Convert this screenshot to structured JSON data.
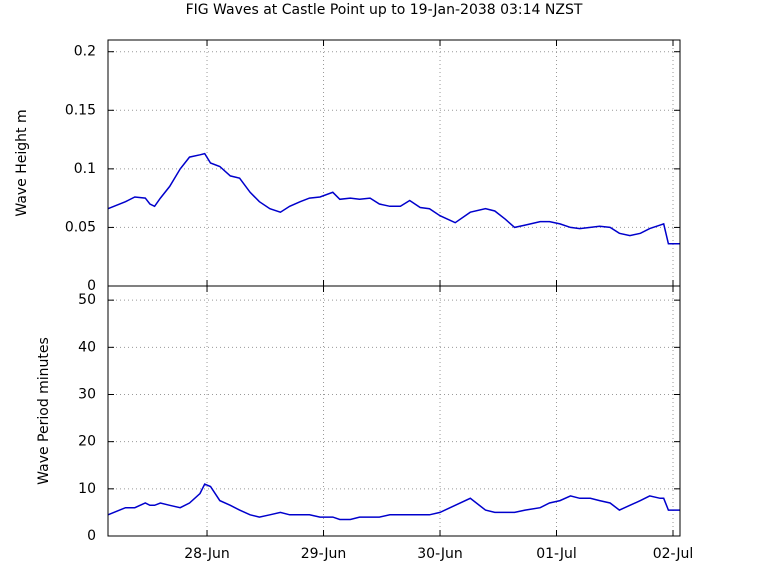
{
  "chart_data": [
    {
      "type": "line",
      "title": "FIG Waves at Castle Point up to 19-Jan-2038 03:14 NZST",
      "ylabel": "Wave Height m",
      "x": [
        0.15,
        0.3,
        0.38,
        0.47,
        0.51,
        0.55,
        0.6,
        0.68,
        0.77,
        0.85,
        0.94,
        0.98,
        1.03,
        1.11,
        1.2,
        1.28,
        1.37,
        1.45,
        1.54,
        1.63,
        1.71,
        1.8,
        1.88,
        1.97,
        2.08,
        2.14,
        2.23,
        2.31,
        2.4,
        2.48,
        2.57,
        2.66,
        2.74,
        2.83,
        2.91,
        3.0,
        3.13,
        3.26,
        3.39,
        3.47,
        3.56,
        3.64,
        3.73,
        3.86,
        3.94,
        4.03,
        4.12,
        4.2,
        4.29,
        4.37,
        4.46,
        4.54,
        4.63,
        4.72,
        4.8,
        4.89,
        4.92,
        4.96,
        5.06
      ],
      "series": [
        {
          "name": "Wave Height",
          "color": "#0000cc",
          "values": [
            0.066,
            0.072,
            0.076,
            0.075,
            0.07,
            0.068,
            0.075,
            0.085,
            0.1,
            0.11,
            0.112,
            0.113,
            0.105,
            0.102,
            0.094,
            0.092,
            0.08,
            0.072,
            0.066,
            0.063,
            0.068,
            0.072,
            0.075,
            0.076,
            0.08,
            0.074,
            0.075,
            0.074,
            0.075,
            0.07,
            0.068,
            0.068,
            0.073,
            0.067,
            0.066,
            0.06,
            0.054,
            0.063,
            0.066,
            0.064,
            0.057,
            0.05,
            0.052,
            0.055,
            0.055,
            0.053,
            0.05,
            0.049,
            0.05,
            0.051,
            0.05,
            0.045,
            0.043,
            0.045,
            0.049,
            0.052,
            0.053,
            0.036,
            0.036
          ]
        }
      ],
      "xlim": [
        0.15,
        5.06
      ],
      "ylim": [
        0,
        0.21
      ],
      "yticks": [
        0,
        0.05,
        0.1,
        0.15,
        0.2
      ],
      "grid": true
    },
    {
      "type": "line",
      "ylabel": "Wave Period minutes",
      "x": [
        0.15,
        0.3,
        0.38,
        0.47,
        0.51,
        0.55,
        0.6,
        0.68,
        0.77,
        0.85,
        0.94,
        0.98,
        1.03,
        1.11,
        1.2,
        1.28,
        1.37,
        1.45,
        1.54,
        1.63,
        1.71,
        1.8,
        1.88,
        1.97,
        2.08,
        2.14,
        2.23,
        2.31,
        2.4,
        2.48,
        2.57,
        2.66,
        2.74,
        2.83,
        2.91,
        3.0,
        3.13,
        3.26,
        3.39,
        3.47,
        3.56,
        3.64,
        3.73,
        3.86,
        3.94,
        4.03,
        4.12,
        4.2,
        4.29,
        4.37,
        4.46,
        4.54,
        4.63,
        4.72,
        4.8,
        4.89,
        4.92,
        4.96,
        5.06
      ],
      "series": [
        {
          "name": "Wave Period",
          "color": "#0000cc",
          "values": [
            4.5,
            6,
            6,
            7,
            6.5,
            6.5,
            7,
            6.5,
            6,
            7,
            9,
            11,
            10.5,
            7.5,
            6.5,
            5.5,
            4.5,
            4,
            4.5,
            5,
            4.5,
            4.5,
            4.5,
            4,
            4,
            3.5,
            3.5,
            4,
            4,
            4,
            4.5,
            4.5,
            4.5,
            4.5,
            4.5,
            5,
            6.5,
            8,
            5.5,
            5,
            5,
            5,
            5.5,
            6,
            7,
            7.5,
            8.5,
            8,
            8,
            7.5,
            7,
            5.5,
            6.5,
            7.5,
            8.5,
            8,
            8,
            5.5,
            5.5
          ]
        }
      ],
      "xlim": [
        0.15,
        5.06
      ],
      "ylim": [
        0,
        53
      ],
      "yticks": [
        0,
        10,
        20,
        30,
        40,
        50
      ],
      "xticks": [
        {
          "value": 1,
          "label": "28-Jun"
        },
        {
          "value": 2,
          "label": "29-Jun"
        },
        {
          "value": 3,
          "label": "30-Jun"
        },
        {
          "value": 4,
          "label": "01-Jul"
        },
        {
          "value": 5,
          "label": "02-Jul"
        }
      ],
      "grid": true
    }
  ]
}
